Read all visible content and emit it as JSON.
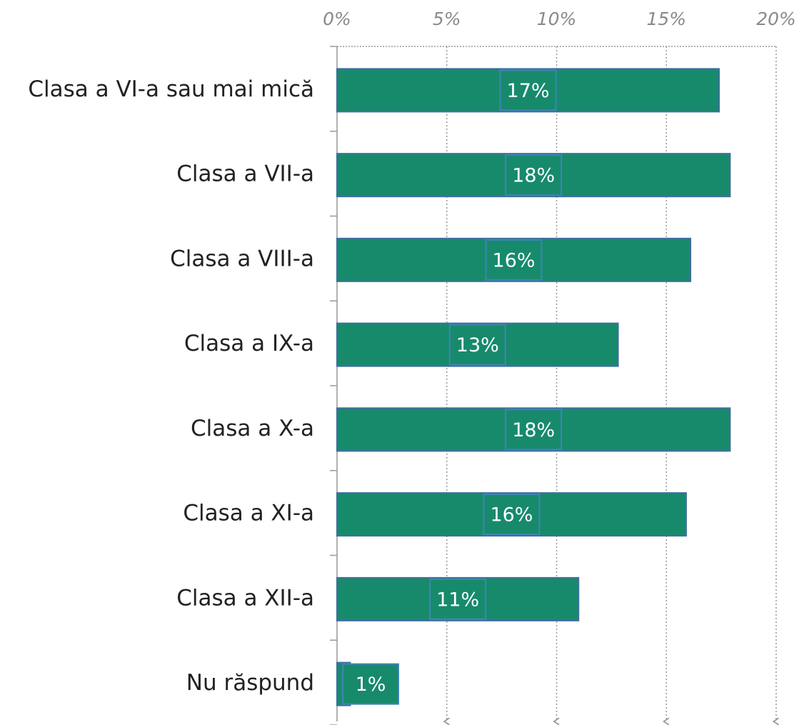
{
  "chart_data": {
    "type": "barh",
    "categories": [
      "Clasa a VI-a sau mai mică",
      "Clasa a VII-a",
      "Clasa a VIII-a",
      "Clasa a IX-a",
      "Clasa a X-a",
      "Clasa a XI-a",
      "Clasa a XII-a",
      "Nu răspund"
    ],
    "values": [
      17.4,
      17.9,
      16.1,
      12.8,
      17.9,
      15.9,
      11.0,
      0.6
    ],
    "value_labels": [
      "17%",
      "18%",
      "16%",
      "13%",
      "18%",
      "16%",
      "11%",
      "1%"
    ],
    "color": "#178a6c",
    "xlim": [
      0,
      20
    ],
    "xticks": [
      {
        "value": 0,
        "label": "0%"
      },
      {
        "value": 5,
        "label": "5%"
      },
      {
        "value": 10,
        "label": "10%"
      },
      {
        "value": 15,
        "label": "15%"
      },
      {
        "value": 20,
        "label": "20%"
      }
    ],
    "grid": true
  }
}
